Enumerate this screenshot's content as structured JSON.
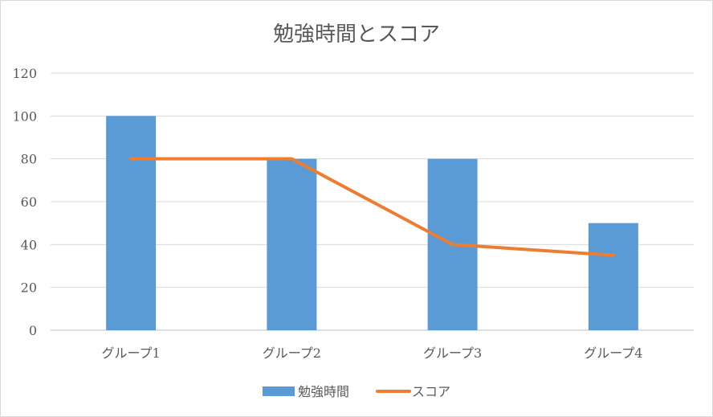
{
  "chart_data": {
    "type": "bar",
    "title": "勉強時間とスコア",
    "categories": [
      "グループ1",
      "グループ2",
      "グループ3",
      "グループ4"
    ],
    "series": [
      {
        "name": "勉強時間",
        "kind": "bar",
        "values": [
          100,
          80,
          80,
          50
        ],
        "color": "#5b9bd5"
      },
      {
        "name": "スコア",
        "kind": "line",
        "values": [
          80,
          80,
          40,
          35
        ],
        "color": "#ed7d31"
      }
    ],
    "ylim": [
      0,
      120
    ],
    "yticks": [
      0,
      20,
      40,
      60,
      80,
      100,
      120
    ],
    "grid": true,
    "legend": "bottom",
    "xlabel": "",
    "ylabel": ""
  }
}
